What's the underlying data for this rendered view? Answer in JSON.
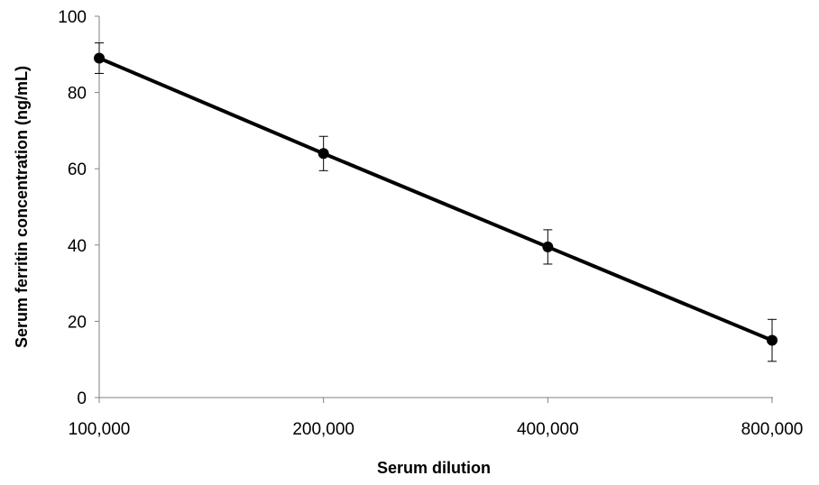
{
  "chart_data": {
    "type": "line",
    "title": "",
    "xlabel": "Serum dilution",
    "ylabel": "Serum ferritin concentration (ng/mL)",
    "categories": [
      "100,000",
      "200,000",
      "400,000",
      "800,000"
    ],
    "series": [
      {
        "values": [
          89,
          64,
          39.5,
          15
        ],
        "error": [
          4,
          4.5,
          4.5,
          5.5
        ]
      }
    ],
    "yticks": [
      "0",
      "20",
      "40",
      "60",
      "80",
      "100"
    ],
    "ylim": [
      0,
      100
    ],
    "grid": false,
    "legend": "none",
    "colors": {
      "line": "#000000",
      "marker": "#000000",
      "axis": "#808080"
    }
  }
}
